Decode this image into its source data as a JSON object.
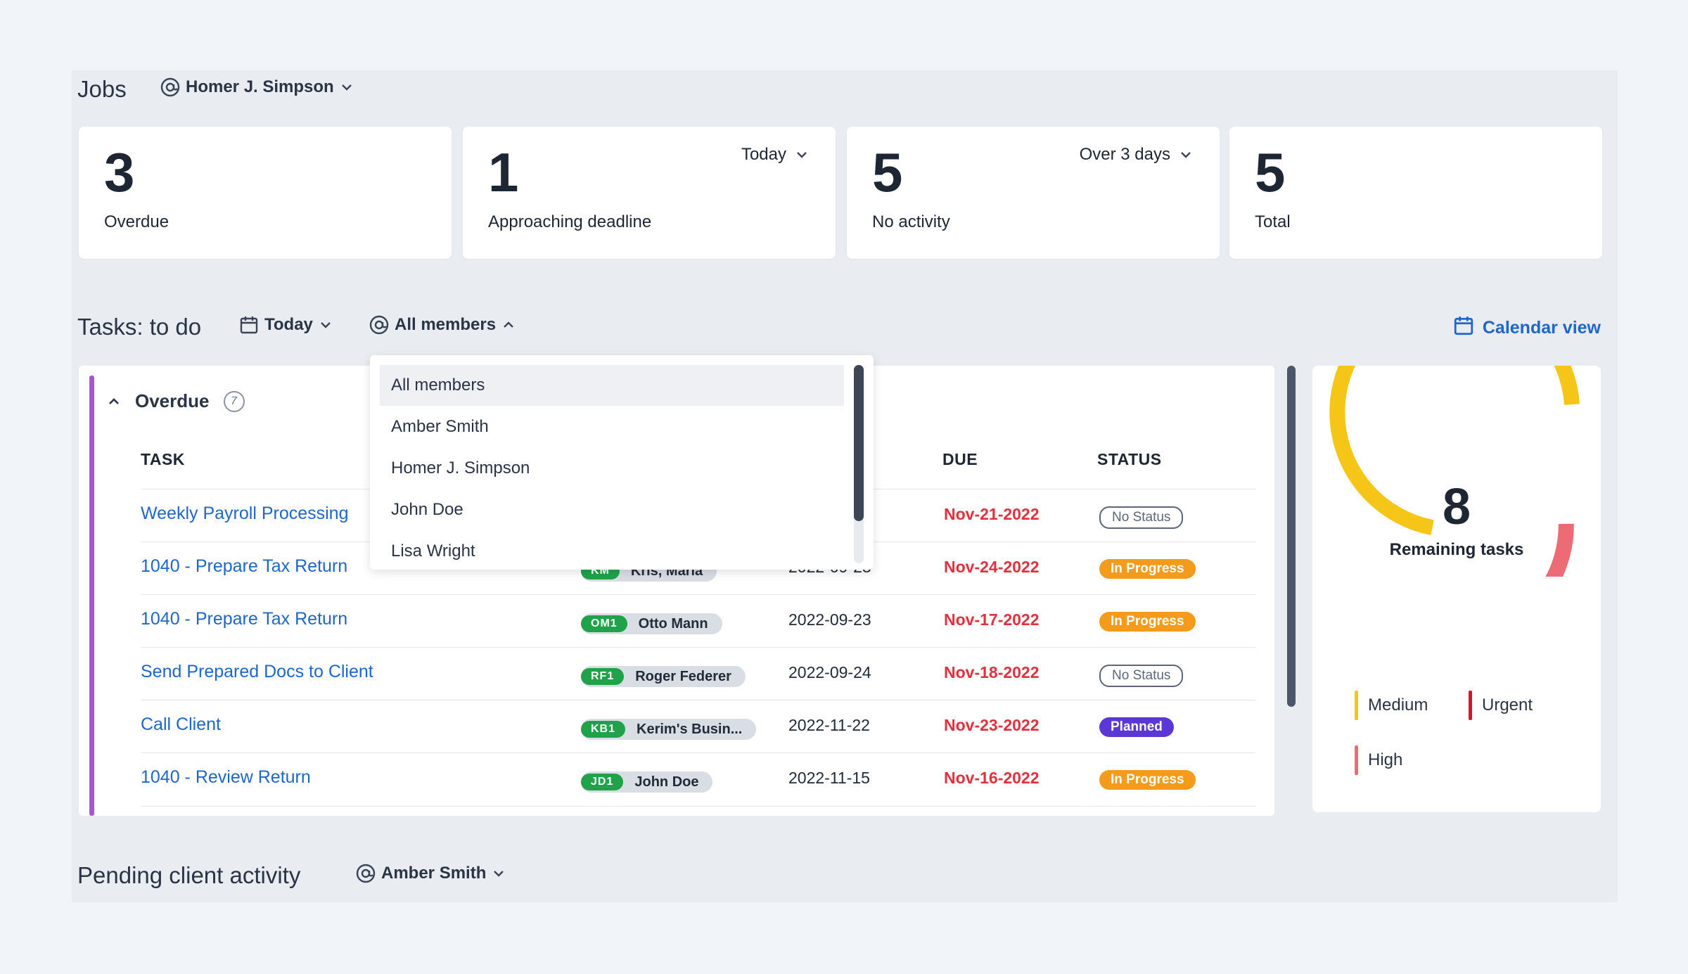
{
  "jobs": {
    "title": "Jobs",
    "member": "Homer J. Simpson",
    "cards": [
      {
        "value": "3",
        "label": "Overdue",
        "selector": ""
      },
      {
        "value": "1",
        "label": "Approaching deadline",
        "selector": "Today"
      },
      {
        "value": "5",
        "label": "No activity",
        "selector": "Over 3 days"
      },
      {
        "value": "5",
        "label": "Total",
        "selector": ""
      }
    ]
  },
  "tasks": {
    "title": "Tasks: to do",
    "date_filter": "Today",
    "member_filter": "All members",
    "calendar_link": "Calendar view",
    "group": {
      "label": "Overdue",
      "count": "7"
    },
    "columns": {
      "task": "TASK",
      "due": "DUE",
      "status": "STATUS"
    },
    "rows": [
      {
        "task": "Weekly Payroll Processing",
        "initials": "",
        "assignee": "",
        "start": "",
        "due": "Nov-21-2022",
        "status": "No Status",
        "status_kind": "none"
      },
      {
        "task": "1040 - Prepare Tax Return",
        "initials": "KM",
        "assignee": "Kris, Maria",
        "start": "2022-09-23",
        "due": "Nov-24-2022",
        "status": "In Progress",
        "status_kind": "progress"
      },
      {
        "task": "1040 - Prepare Tax Return",
        "initials": "OM1",
        "assignee": "Otto Mann",
        "start": "2022-09-23",
        "due": "Nov-17-2022",
        "status": "In Progress",
        "status_kind": "progress"
      },
      {
        "task": "Send Prepared Docs to Client",
        "initials": "RF1",
        "assignee": "Roger Federer",
        "start": "2022-09-24",
        "due": "Nov-18-2022",
        "status": "No Status",
        "status_kind": "none"
      },
      {
        "task": "Call Client",
        "initials": "KB1",
        "assignee": "Kerim's Busin...",
        "start": "2022-11-22",
        "due": "Nov-23-2022",
        "status": "Planned",
        "status_kind": "planned"
      },
      {
        "task": "1040 - Review Return",
        "initials": "JD1",
        "assignee": "John Doe",
        "start": "2022-11-15",
        "due": "Nov-16-2022",
        "status": "In Progress",
        "status_kind": "progress"
      }
    ],
    "dropdown_options": [
      "All members",
      "Amber Smith",
      "Homer J. Simpson",
      "John Doe",
      "Lisa Wright"
    ]
  },
  "remaining": {
    "count": "8",
    "label": "Remaining tasks",
    "legend": [
      {
        "label": "Medium",
        "color": "#f5c518"
      },
      {
        "label": "Urgent",
        "color": "#d9142f"
      },
      {
        "label": "High",
        "color": "#ec6b74"
      }
    ]
  },
  "pending": {
    "title": "Pending client activity",
    "member": "Amber Smith"
  },
  "icons": [
    "at-icon",
    "chevron-down-icon",
    "chevron-up-icon",
    "calendar-icon",
    "info-count-icon"
  ]
}
